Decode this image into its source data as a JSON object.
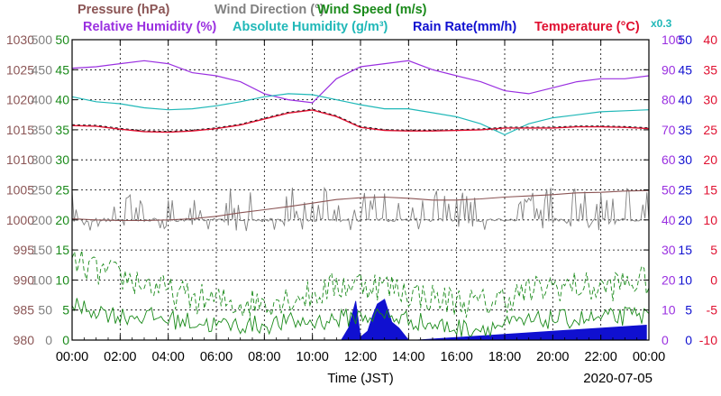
{
  "chart_data": {
    "type": "line",
    "date": "2020-07-05",
    "x_axis_label": "Time (JST)",
    "x_range_hours": [
      0,
      24
    ],
    "x_tick_labels": [
      "00:00",
      "02:00",
      "04:00",
      "06:00",
      "08:00",
      "10:00",
      "12:00",
      "14:00",
      "16:00",
      "18:00",
      "20:00",
      "22:00",
      "00:00"
    ],
    "grid": true,
    "legend_row1": [
      {
        "id": "pressure",
        "label": "Pressure (hPa)",
        "color": "#8b5555"
      },
      {
        "id": "winddir",
        "label": "Wind Direction (°)",
        "color": "#808080"
      },
      {
        "id": "windspeed",
        "label": "Wind Speed (m/s)",
        "color": "#1a8a1a"
      }
    ],
    "legend_row2": [
      {
        "id": "rh",
        "label": "Relative Humidity (%)",
        "color": "#9a30e0"
      },
      {
        "id": "ah",
        "label": "Absolute Humidity (g/m³)",
        "color": "#20b8b8"
      },
      {
        "id": "rain",
        "label": "Rain Rate(mm/h)",
        "color": "#1010d0"
      },
      {
        "id": "temp",
        "label": "Temperature (°C)",
        "color": "#e01030"
      }
    ],
    "ah_scale_note": "x0.3",
    "axes": {
      "pressure": {
        "range": [
          980,
          1030
        ],
        "ticks": [
          "1030",
          "1025",
          "1020",
          "1015",
          "1010",
          "1005",
          "1000",
          "995",
          "990",
          "985",
          "980"
        ],
        "color": "#8b5555"
      },
      "winddir": {
        "range": [
          0,
          500
        ],
        "ticks": [
          "500",
          "450",
          "400",
          "350",
          "300",
          "250",
          "200",
          "150",
          "100",
          "50",
          "0"
        ],
        "color": "#808080"
      },
      "windspeed": {
        "range": [
          0,
          50
        ],
        "ticks": [
          "50",
          "45",
          "40",
          "35",
          "30",
          "25",
          "20",
          "15",
          "10",
          "5",
          "0"
        ],
        "color": "#1a8a1a"
      },
      "rh": {
        "range": [
          0,
          100
        ],
        "ticks": [
          "100",
          "90",
          "80",
          "70",
          "60",
          "50",
          "40",
          "30",
          "20",
          "10",
          "0"
        ],
        "color": "#9a30e0"
      },
      "rain": {
        "range": [
          0,
          50
        ],
        "ticks": [
          "50",
          "45",
          "40",
          "35",
          "30",
          "25",
          "20",
          "15",
          "10",
          "5",
          "0"
        ],
        "color": "#1010d0"
      },
      "temp": {
        "range": [
          -10,
          40
        ],
        "ticks": [
          "40",
          "35",
          "30",
          "25",
          "20",
          "15",
          "10",
          "5",
          "0",
          "-5",
          "-10"
        ],
        "color": "#e01030"
      }
    },
    "series": {
      "pressure": {
        "x": [
          0,
          1,
          2,
          3,
          4,
          5,
          6,
          7,
          8,
          9,
          10,
          11,
          12,
          13,
          14,
          15,
          16,
          17,
          18,
          19,
          20,
          21,
          22,
          23,
          24
        ],
        "y": [
          1000.2,
          1000.0,
          999.9,
          999.9,
          1000.0,
          1000.2,
          1000.6,
          1001.2,
          1001.7,
          1002.2,
          1002.8,
          1003.4,
          1003.7,
          1003.8,
          1003.6,
          1003.3,
          1003.3,
          1003.5,
          1003.8,
          1004.0,
          1004.2,
          1004.5,
          1004.6,
          1004.8,
          1004.9
        ]
      },
      "winddir_mean": {
        "x": [
          0,
          24
        ],
        "y": [
          200,
          200
        ]
      },
      "windspeed_mean": {
        "x": [
          0,
          1,
          2,
          3,
          4,
          5,
          6,
          7,
          8,
          9,
          10,
          11,
          12,
          13,
          14,
          15,
          16,
          17,
          18,
          19,
          20,
          21,
          22,
          23,
          24
        ],
        "y": [
          5.5,
          5.0,
          4.0,
          4.0,
          3.5,
          3.0,
          2.5,
          2.5,
          2.5,
          3.0,
          3.0,
          3.5,
          4.0,
          4.0,
          3.5,
          2.5,
          2.0,
          2.0,
          2.5,
          3.0,
          3.5,
          3.5,
          3.5,
          4.0,
          4.0
        ]
      },
      "windspeed_gust": {
        "x": [
          0,
          1,
          2,
          3,
          4,
          5,
          6,
          7,
          8,
          9,
          10,
          11,
          12,
          13,
          14,
          15,
          16,
          17,
          18,
          19,
          20,
          21,
          22,
          23,
          24
        ],
        "y": [
          13.0,
          11.5,
          10.5,
          9.5,
          8.0,
          7.0,
          6.5,
          6.0,
          6.5,
          7.0,
          7.5,
          9.0,
          9.5,
          9.0,
          8.0,
          7.0,
          6.5,
          6.0,
          7.0,
          8.0,
          9.0,
          9.0,
          8.5,
          9.5,
          10.0
        ]
      },
      "rh": {
        "x": [
          0,
          1,
          2,
          3,
          4,
          5,
          6,
          7,
          8,
          9,
          10,
          11,
          12,
          13,
          14,
          15,
          16,
          17,
          18,
          19,
          20,
          21,
          22,
          23,
          24
        ],
        "y": [
          90.5,
          91,
          92,
          93,
          92,
          89,
          88,
          86,
          82,
          80,
          79,
          87,
          91,
          92,
          93,
          90,
          88,
          86,
          83,
          82,
          84,
          86,
          87,
          87,
          88
        ]
      },
      "ah": {
        "x": [
          0,
          1,
          2,
          3,
          4,
          5,
          6,
          7,
          8,
          9,
          10,
          11,
          12,
          13,
          14,
          15,
          16,
          17,
          18,
          19,
          20,
          21,
          22,
          23,
          24
        ],
        "y": [
          24.3,
          23.8,
          23.6,
          23.2,
          23.0,
          23.1,
          23.4,
          23.8,
          24.3,
          24.6,
          24.5,
          24.0,
          23.5,
          23.1,
          23.1,
          22.7,
          22.3,
          21.6,
          20.5,
          21.6,
          22.2,
          22.5,
          22.8,
          22.9,
          23.0
        ]
      },
      "temp": {
        "x": [
          0,
          1,
          2,
          3,
          4,
          5,
          6,
          7,
          8,
          9,
          10,
          11,
          12,
          13,
          14,
          15,
          16,
          17,
          18,
          19,
          20,
          21,
          22,
          23,
          24
        ],
        "y": [
          25.7,
          25.6,
          25.1,
          24.7,
          24.6,
          24.8,
          25.2,
          25.8,
          26.8,
          27.8,
          28.3,
          27.2,
          25.4,
          24.9,
          24.8,
          24.8,
          24.9,
          25.0,
          25.3,
          25.3,
          25.3,
          25.5,
          25.5,
          25.4,
          25.2
        ]
      },
      "rain": {
        "x": [
          11.2,
          11.5,
          11.8,
          12.0,
          12.3,
          12.5,
          12.7,
          13.0,
          13.3,
          13.6,
          14.0,
          14.3,
          23.9
        ],
        "y": [
          0,
          2.0,
          6.5,
          0.5,
          1.5,
          4.0,
          6.0,
          6.8,
          3.0,
          2.0,
          0,
          0,
          2.5
        ]
      }
    }
  }
}
